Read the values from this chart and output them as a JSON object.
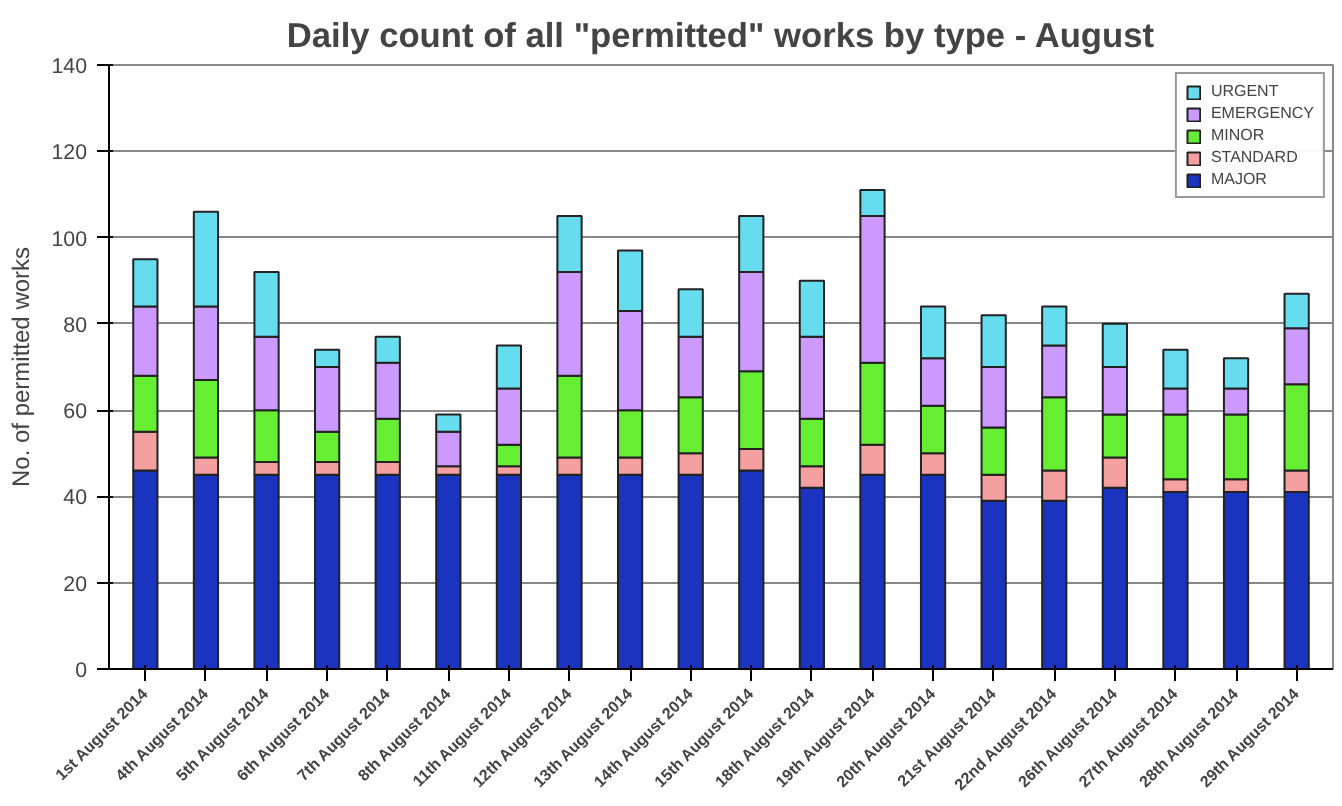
{
  "chart_data": {
    "type": "bar",
    "stacked": true,
    "title": "Daily count of all \"permitted\" works by type - August",
    "ylabel": "No. of permitted works",
    "categories": [
      "1st August 2014",
      "4th August 2014",
      "5th August 2014",
      "6th August 2014",
      "7th August 2014",
      "8th August 2014",
      "11th August 2014",
      "12th August 2014",
      "13th August 2014",
      "14th August 2014",
      "15th August 2014",
      "18th August 2014",
      "19th August 2014",
      "20th August 2014",
      "21st August 2014",
      "22nd August 2014",
      "26th August 2014",
      "27th August 2014",
      "28th August 2014",
      "29th August 2014"
    ],
    "series": [
      {
        "name": "MAJOR",
        "color": "#1a34c0",
        "values": [
          46,
          45,
          45,
          45,
          45,
          45,
          45,
          45,
          45,
          45,
          46,
          42,
          45,
          45,
          39,
          39,
          42,
          41,
          41,
          41
        ]
      },
      {
        "name": "STANDARD",
        "color": "#f4a0a0",
        "values": [
          9,
          4,
          3,
          3,
          3,
          2,
          2,
          4,
          4,
          5,
          5,
          5,
          7,
          5,
          6,
          7,
          7,
          3,
          3,
          5
        ]
      },
      {
        "name": "MINOR",
        "color": "#66ee33",
        "values": [
          13,
          18,
          12,
          7,
          10,
          0,
          5,
          19,
          11,
          13,
          18,
          11,
          19,
          11,
          11,
          17,
          10,
          15,
          15,
          20
        ]
      },
      {
        "name": "EMERGENCY",
        "color": "#cc99ff",
        "values": [
          16,
          17,
          17,
          15,
          13,
          8,
          13,
          24,
          23,
          14,
          23,
          19,
          34,
          11,
          14,
          12,
          11,
          6,
          6,
          13
        ]
      },
      {
        "name": "URGENT",
        "color": "#66ddee",
        "values": [
          11,
          22,
          15,
          4,
          6,
          4,
          10,
          13,
          14,
          11,
          13,
          13,
          6,
          12,
          12,
          9,
          10,
          9,
          7,
          8
        ]
      }
    ],
    "ylim": [
      0,
      140
    ],
    "yticks": [
      0,
      20,
      40,
      60,
      80,
      100,
      120,
      140
    ],
    "grid": "y",
    "legend": "top right"
  }
}
